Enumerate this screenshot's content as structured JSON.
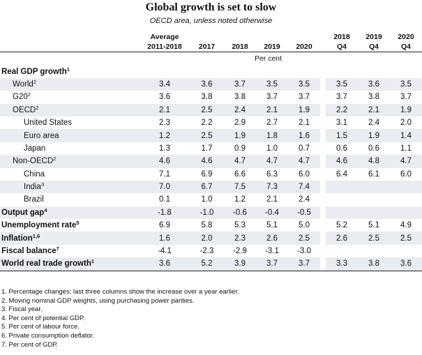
{
  "title": "Global growth is set to slow",
  "subtitle": "OECD area, unless noted otherwise",
  "columns": [
    {
      "l1": "Average",
      "l2": "2011-2018"
    },
    {
      "l1": "",
      "l2": "2017"
    },
    {
      "l1": "",
      "l2": "2018"
    },
    {
      "l1": "",
      "l2": "2019"
    },
    {
      "l1": "",
      "l2": "2020"
    },
    {
      "l1": "2018",
      "l2": "Q4"
    },
    {
      "l1": "2019",
      "l2": "Q4"
    },
    {
      "l1": "2020",
      "l2": "Q4"
    }
  ],
  "unit_label": "Per cent",
  "rows": [
    {
      "label": "Real GDP growth",
      "sup": "1",
      "level": 0,
      "bold": true,
      "values": [
        "",
        "",
        "",
        "",
        "",
        "",
        "",
        ""
      ]
    },
    {
      "label": "World",
      "sup": "2",
      "level": 1,
      "bold": false,
      "values": [
        "3.4",
        "3.6",
        "3.7",
        "3.5",
        "3.5",
        "3.5",
        "3.6",
        "3.5"
      ]
    },
    {
      "label": "G20",
      "sup": "2",
      "level": 1,
      "bold": false,
      "values": [
        "3.6",
        "3.8",
        "3.8",
        "3.7",
        "3.7",
        "3.7",
        "3.8",
        "3.7"
      ]
    },
    {
      "label": "OECD",
      "sup": "2",
      "level": 1,
      "bold": false,
      "values": [
        "2.1",
        "2.5",
        "2.4",
        "2.1",
        "1.9",
        "2.2",
        "2.1",
        "1.9"
      ]
    },
    {
      "label": "United States",
      "sup": "",
      "level": 2,
      "bold": false,
      "values": [
        "2.3",
        "2.2",
        "2.9",
        "2.7",
        "2.1",
        "3.1",
        "2.4",
        "2.0"
      ]
    },
    {
      "label": "Euro area",
      "sup": "",
      "level": 2,
      "bold": false,
      "values": [
        "1.2",
        "2.5",
        "1.9",
        "1.8",
        "1.6",
        "1.5",
        "1.9",
        "1.4"
      ]
    },
    {
      "label": "Japan",
      "sup": "",
      "level": 2,
      "bold": false,
      "values": [
        "1.3",
        "1.7",
        "0.9",
        "1.0",
        "0.7",
        "0.6",
        "0.6",
        "1.1"
      ]
    },
    {
      "label": "Non-OECD",
      "sup": "2",
      "level": 1,
      "bold": false,
      "values": [
        "4.6",
        "4.6",
        "4.7",
        "4.7",
        "4.7",
        "4.6",
        "4.8",
        "4.7"
      ]
    },
    {
      "label": "China",
      "sup": "",
      "level": 2,
      "bold": false,
      "values": [
        "7.1",
        "6.9",
        "6.6",
        "6.3",
        "6.0",
        "6.4",
        "6.1",
        "6.0"
      ]
    },
    {
      "label": "India",
      "sup": "3",
      "level": 2,
      "bold": false,
      "values": [
        "7.0",
        "6.7",
        "7.5",
        "7.3",
        "7.4",
        "",
        "",
        ""
      ]
    },
    {
      "label": "Brazil",
      "sup": "",
      "level": 2,
      "bold": false,
      "values": [
        "0.1",
        "1.0",
        "1.2",
        "2.1",
        "2.4",
        "",
        "",
        ""
      ]
    },
    {
      "label": "Output gap",
      "sup": "4",
      "level": 0,
      "bold": true,
      "values": [
        "-1.8",
        "-1.0",
        "-0.6",
        "-0.4",
        "-0.5",
        "",
        "",
        ""
      ]
    },
    {
      "label": "Unemployment rate",
      "sup": "5",
      "level": 0,
      "bold": true,
      "values": [
        "6.9",
        "5.8",
        "5.3",
        "5.1",
        "5.0",
        "5.2",
        "5.1",
        "4.9"
      ]
    },
    {
      "label": "Inflation",
      "sup": "1,6",
      "level": 0,
      "bold": true,
      "values": [
        "1.6",
        "2.0",
        "2.3",
        "2.6",
        "2.5",
        "2.6",
        "2.5",
        "2.5"
      ]
    },
    {
      "label": "Fiscal balance",
      "sup": "7",
      "level": 0,
      "bold": true,
      "values": [
        "-4.1",
        "-2.3",
        "-2.9",
        "-3.1",
        "-3.0",
        "",
        "",
        ""
      ]
    },
    {
      "label": "World real trade growth",
      "sup": "1",
      "level": 0,
      "bold": true,
      "values": [
        "3.6",
        "5.2",
        "3.9",
        "3.7",
        "3.7",
        "3.3",
        "3.8",
        "3.6"
      ]
    }
  ],
  "notes": [
    "1. Percentage changes; last three columns show the increase over a year earlier.",
    "2. Moving nominal GDP weights, using purchasing power parities.",
    "3. Fiscal year.",
    "4. Per cent of potential GDP.",
    "5. Per cent of labour force.",
    "6. Private consumption deflator.",
    "7. Per cent of GDP."
  ]
}
